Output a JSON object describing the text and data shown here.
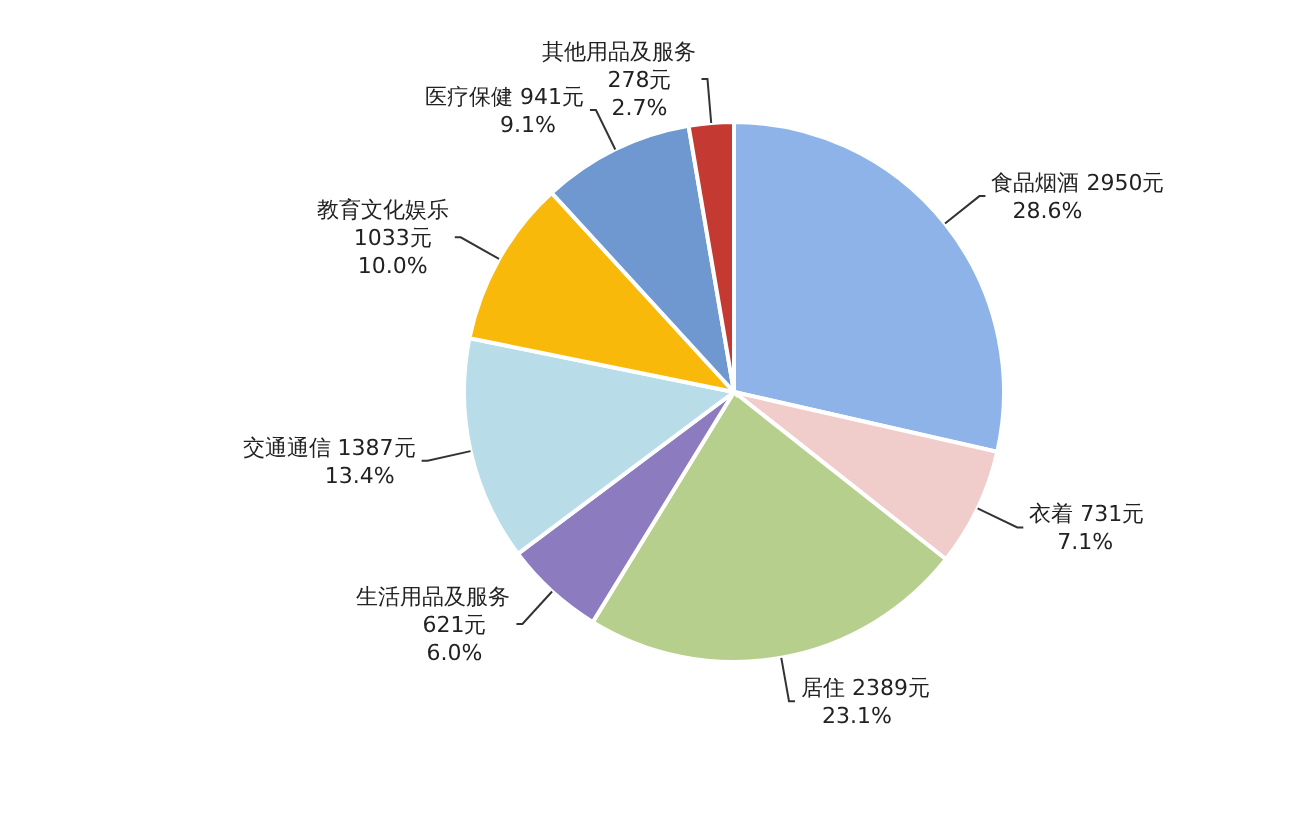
{
  "chart_data": {
    "type": "pie",
    "categories": [
      "食品烟酒",
      "衣着",
      "居住",
      "生活用品及服务",
      "交通通信",
      "教育文化娱乐",
      "医疗保健",
      "其他用品及服务"
    ],
    "values": [
      2950,
      731,
      2389,
      621,
      1387,
      1033,
      941,
      278
    ],
    "value_labels": [
      "2950元\n28.6%",
      "731元\n7.1%",
      "2389元\n23.1%",
      "621元\n6.0%",
      "1387元\n13.4%",
      "1033元\n10.0%",
      "941元\n9.1%",
      "278元\n2.7%"
    ],
    "colors": [
      "#8db3e9",
      "#f0cccb",
      "#b6cf8d",
      "#8d7bc0",
      "#b8dde9",
      "#f9b90a",
      "#6e98cf",
      "#c43a32"
    ]
  }
}
